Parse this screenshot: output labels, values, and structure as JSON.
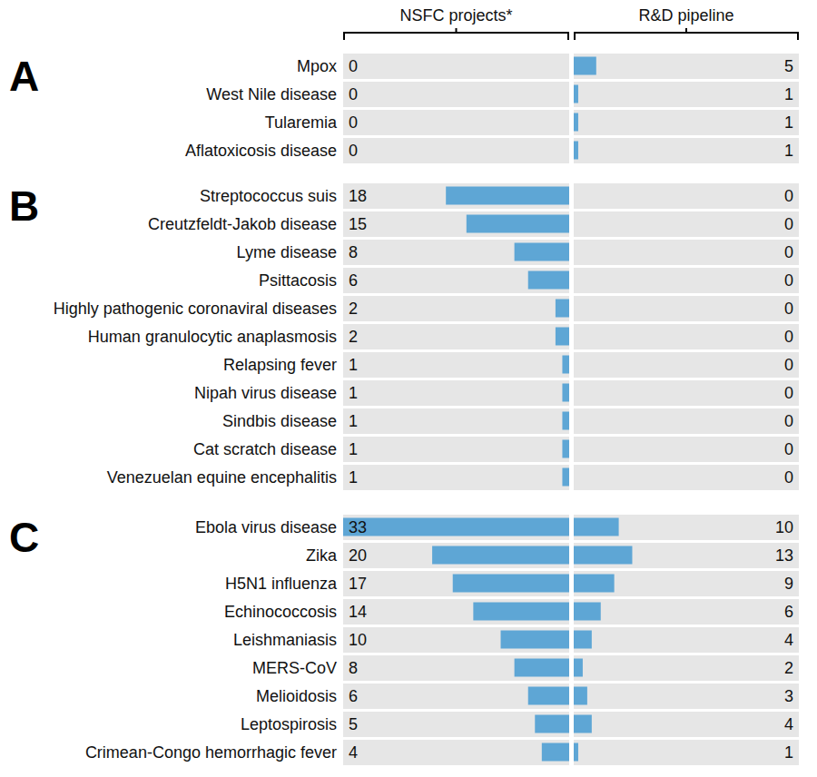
{
  "chart_data": {
    "type": "bar",
    "orientation": "horizontal",
    "data_labels": true,
    "tick_labels": "y",
    "series": [
      {
        "name": "NSFC projects*",
        "color": "#5ea6d5",
        "xlim": [
          0,
          33
        ]
      },
      {
        "name": "R&D pipeline",
        "color": "#5ea6d5",
        "xlim": [
          0,
          50
        ]
      }
    ],
    "panels": [
      {
        "title": "A",
        "categories": [
          "Mpox",
          "West Nile disease",
          "Tularemia",
          "Aflatoxicosis disease"
        ],
        "series": [
          {
            "values": [
              0,
              0,
              0,
              0
            ]
          },
          {
            "values": [
              5,
              1,
              1,
              1
            ]
          }
        ]
      },
      {
        "title": "B",
        "categories": [
          "Streptococcus suis",
          "Creutzfeldt-Jakob disease",
          "Lyme disease",
          "Psittacosis",
          "Highly pathogenic coronaviral diseases",
          "Human granulocytic anaplasmosis",
          "Relapsing fever",
          "Nipah virus disease",
          "Sindbis disease",
          "Cat scratch disease",
          "Venezuelan equine encephalitis"
        ],
        "series": [
          {
            "values": [
              18,
              15,
              8,
              6,
              2,
              2,
              1,
              1,
              1,
              1,
              1
            ]
          },
          {
            "values": [
              0,
              0,
              0,
              0,
              0,
              0,
              0,
              0,
              0,
              0,
              0
            ]
          }
        ]
      },
      {
        "title": "C",
        "categories": [
          "Ebola virus disease",
          "Zika",
          "H5N1 influenza",
          "Echinococcosis",
          "Leishmaniasis",
          "MERS-CoV",
          "Melioidosis",
          "Leptospirosis",
          "Crimean-Congo hemorrhagic fever"
        ],
        "series": [
          {
            "values": [
              33,
              20,
              17,
              14,
              10,
              8,
              6,
              5,
              4
            ]
          },
          {
            "values": [
              10,
              13,
              9,
              6,
              4,
              2,
              3,
              4,
              1
            ]
          }
        ]
      }
    ]
  }
}
